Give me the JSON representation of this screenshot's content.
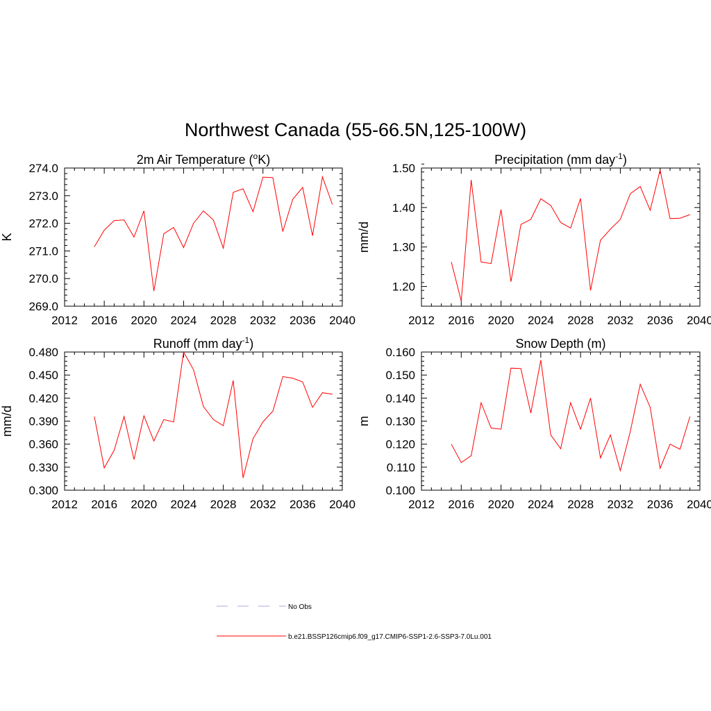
{
  "figure": {
    "title": "Northwest Canada (55-66.5N,125-100W)"
  },
  "legend": {
    "entries": [
      {
        "label": "No Obs",
        "color": "#aaaadd",
        "dash": "dashed"
      },
      {
        "label": "b.e21.BSSP126cmip6.f09_g17.CMIP6-SSP1-2.6-SSP3-7.0Lu.001",
        "color": "#ff0000",
        "dash": "solid"
      }
    ]
  },
  "chart_data": [
    {
      "type": "line",
      "title": "2m Air Temperature (",
      "title_sup": "o",
      "title_after": "K)",
      "ylabel": "K",
      "xlim": [
        2012,
        2040
      ],
      "xticks": [
        2012,
        2016,
        2020,
        2024,
        2028,
        2032,
        2036,
        2040
      ],
      "ylim": [
        269.0,
        274.0
      ],
      "yticks": [
        269.0,
        270.0,
        271.0,
        272.0,
        273.0,
        274.0
      ],
      "ydecimals": 1,
      "yminor": 0.2,
      "grid": false,
      "series": [
        {
          "color": "#ff0000",
          "x": [
            2015,
            2016,
            2017,
            2018,
            2019,
            2020,
            2021,
            2022,
            2023,
            2024,
            2025,
            2026,
            2027,
            2028,
            2029,
            2030,
            2031,
            2032,
            2033,
            2034,
            2035,
            2036,
            2037,
            2038,
            2039
          ],
          "y": [
            271.15,
            271.75,
            272.1,
            272.12,
            271.5,
            272.45,
            269.55,
            271.62,
            271.85,
            271.12,
            272.0,
            272.45,
            272.12,
            271.1,
            273.12,
            273.25,
            272.42,
            273.67,
            273.65,
            271.7,
            272.87,
            273.3,
            271.55,
            273.68,
            272.68
          ]
        }
      ]
    },
    {
      "type": "line",
      "title": "Precipitation (mm day",
      "title_sup": "-1",
      "title_after": ")",
      "ylabel": "mm/d",
      "xlim": [
        2012,
        2040
      ],
      "xticks": [
        2012,
        2016,
        2020,
        2024,
        2028,
        2032,
        2036,
        2040
      ],
      "ylim": [
        1.15,
        1.5
      ],
      "yticks": [
        1.2,
        1.3,
        1.4,
        1.5
      ],
      "ydecimals": 2,
      "yminor": 0.02,
      "grid": false,
      "series": [
        {
          "color": "#ff0000",
          "x": [
            2015,
            2016,
            2017,
            2018,
            2019,
            2020,
            2021,
            2022,
            2023,
            2024,
            2025,
            2026,
            2027,
            2028,
            2029,
            2030,
            2031,
            2032,
            2033,
            2034,
            2035,
            2036,
            2037,
            2038,
            2039
          ],
          "y": [
            1.262,
            1.163,
            1.47,
            1.262,
            1.258,
            1.395,
            1.212,
            1.357,
            1.37,
            1.422,
            1.405,
            1.362,
            1.348,
            1.423,
            1.19,
            1.317,
            1.345,
            1.37,
            1.435,
            1.453,
            1.393,
            1.495,
            1.372,
            1.373,
            1.382
          ]
        }
      ]
    },
    {
      "type": "line",
      "title": "Runoff (mm day",
      "title_sup": "-1",
      "title_after": ")",
      "ylabel": "mm/d",
      "xlim": [
        2012,
        2040
      ],
      "xticks": [
        2012,
        2016,
        2020,
        2024,
        2028,
        2032,
        2036,
        2040
      ],
      "ylim": [
        0.3,
        0.48
      ],
      "yticks": [
        0.3,
        0.33,
        0.36,
        0.39,
        0.42,
        0.45,
        0.48
      ],
      "ydecimals": 3,
      "yminor": 0.006,
      "grid": false,
      "series": [
        {
          "color": "#ff0000",
          "x": [
            2015,
            2016,
            2017,
            2018,
            2019,
            2020,
            2021,
            2022,
            2023,
            2024,
            2025,
            2026,
            2027,
            2028,
            2029,
            2030,
            2031,
            2032,
            2033,
            2034,
            2035,
            2036,
            2037,
            2038,
            2039
          ],
          "y": [
            0.396,
            0.329,
            0.352,
            0.396,
            0.34,
            0.397,
            0.364,
            0.392,
            0.389,
            0.48,
            0.457,
            0.409,
            0.392,
            0.384,
            0.443,
            0.316,
            0.367,
            0.389,
            0.403,
            0.448,
            0.446,
            0.441,
            0.408,
            0.427,
            0.425
          ]
        }
      ]
    },
    {
      "type": "line",
      "title": "Snow Depth (m)",
      "title_sup": "",
      "title_after": "",
      "ylabel": "m",
      "xlim": [
        2012,
        2040
      ],
      "xticks": [
        2012,
        2016,
        2020,
        2024,
        2028,
        2032,
        2036,
        2040
      ],
      "ylim": [
        0.1,
        0.16
      ],
      "yticks": [
        0.1,
        0.11,
        0.12,
        0.13,
        0.14,
        0.15,
        0.16
      ],
      "ydecimals": 3,
      "yminor": 0.002,
      "grid": false,
      "series": [
        {
          "color": "#ff0000",
          "x": [
            2015,
            2016,
            2017,
            2018,
            2019,
            2020,
            2021,
            2022,
            2023,
            2024,
            2025,
            2026,
            2027,
            2028,
            2029,
            2030,
            2031,
            2032,
            2033,
            2034,
            2035,
            2036,
            2037,
            2038,
            2039
          ],
          "y": [
            0.12,
            0.112,
            0.115,
            0.138,
            0.127,
            0.1265,
            0.153,
            0.1528,
            0.1335,
            0.1565,
            0.124,
            0.118,
            0.138,
            0.1265,
            0.14,
            0.114,
            0.124,
            0.1085,
            0.1255,
            0.146,
            0.136,
            0.1095,
            0.12,
            0.1178,
            0.132
          ]
        }
      ]
    }
  ]
}
